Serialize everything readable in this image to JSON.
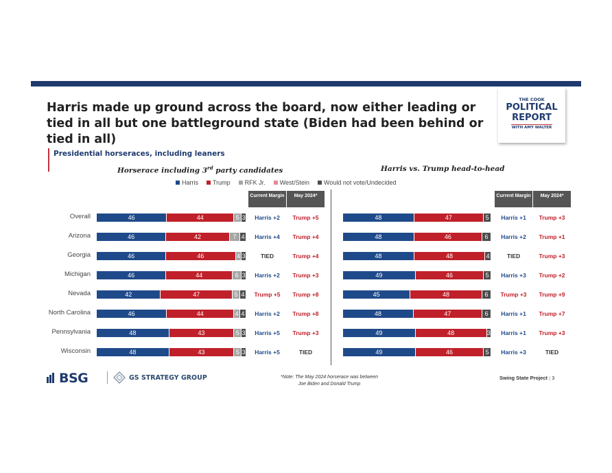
{
  "title": "Harris made up ground across the board, now either leading or tied in all but one battleground state (Biden had been behind or tied in all)",
  "logo": {
    "line1": "THE COOK",
    "line2": "POLITICAL",
    "line3": "REPORT",
    "line4": "WITH AMY WALTER"
  },
  "section_title": "Presidential horseraces, including leaners",
  "left_subtitle_main": "Horserace including 3",
  "left_subtitle_sup": "rd",
  "left_subtitle_end": " party candidates",
  "right_subtitle": "Harris vs. Trump head-to-head",
  "legend": [
    {
      "label": "Harris",
      "color": "#1f4a8a"
    },
    {
      "label": "Trump",
      "color": "#c0202a"
    },
    {
      "label": "RFK Jr.",
      "color": "#a6a6a6"
    },
    {
      "label": "West/Stein",
      "color": "#e88a93"
    },
    {
      "label": "Would not vote/Undecided",
      "color": "#4d4d4d"
    }
  ],
  "headers": {
    "current": "Current Margin",
    "may": "May 2024*"
  },
  "colors": {
    "harris": "#1f4a8a",
    "trump": "#c0202a",
    "rfk": "#a6a6a6",
    "weststein": "#e88a93",
    "undecided": "#4d4d4d"
  },
  "chart_data": [
    {
      "type": "bar",
      "title": "Horserace including 3rd party candidates",
      "categories": [
        "Overall",
        "Arizona",
        "Georgia",
        "Michigan",
        "Nevada",
        "North Carolina",
        "Pennsylvania",
        "Wisconsin"
      ],
      "stacked": true,
      "series": [
        {
          "name": "Harris",
          "values": [
            46,
            46,
            46,
            46,
            42,
            46,
            48,
            48
          ]
        },
        {
          "name": "Trump",
          "values": [
            44,
            42,
            46,
            44,
            47,
            44,
            43,
            43
          ]
        },
        {
          "name": "RFK Jr.",
          "values": [
            5,
            7,
            4,
            6,
            5,
            4,
            5,
            5
          ]
        },
        {
          "name": "West/Stein",
          "values": [
            0,
            0,
            0,
            0,
            0,
            0,
            0,
            0
          ]
        },
        {
          "name": "Would not vote/Undecided",
          "values": [
            3,
            4,
            3,
            3,
            4,
            4,
            3,
            3
          ]
        }
      ],
      "current_margin": [
        "Harris +2",
        "Harris +4",
        "TIED",
        "Harris +2",
        "Trump +5",
        "Harris +2",
        "Harris +5",
        "Harris +5"
      ],
      "may_2024": [
        "Trump +5",
        "Trump +4",
        "Trump +4",
        "Trump +3",
        "Trump +8",
        "Trump +8",
        "Trump +3",
        "TIED"
      ]
    },
    {
      "type": "bar",
      "title": "Harris vs. Trump head-to-head",
      "categories": [
        "Overall",
        "Arizona",
        "Georgia",
        "Michigan",
        "Nevada",
        "North Carolina",
        "Pennsylvania",
        "Wisconsin"
      ],
      "stacked": true,
      "series": [
        {
          "name": "Harris",
          "values": [
            48,
            48,
            48,
            49,
            45,
            48,
            49,
            49
          ]
        },
        {
          "name": "Trump",
          "values": [
            47,
            46,
            48,
            46,
            48,
            47,
            48,
            46
          ]
        },
        {
          "name": "Would not vote/Undecided",
          "values": [
            5,
            6,
            4,
            5,
            6,
            6,
            3,
            5
          ]
        }
      ],
      "current_margin": [
        "Harris +1",
        "Harris +2",
        "TIED",
        "Harris +3",
        "Trump +3",
        "Harris +1",
        "Harris +1",
        "Harris +3"
      ],
      "may_2024": [
        "Trump +3",
        "Trump +1",
        "Trump +3",
        "Trump +2",
        "Trump +9",
        "Trump +7",
        "Trump +3",
        "TIED"
      ]
    }
  ],
  "footer": {
    "bsg": "BSG",
    "gs": "GS STRATEGY GROUP",
    "note_line1": "*Note: The May 2024 horserace was between",
    "note_line2": "Joe Biden and Donald Trump",
    "project": "Swing State Project",
    "page": "3"
  }
}
